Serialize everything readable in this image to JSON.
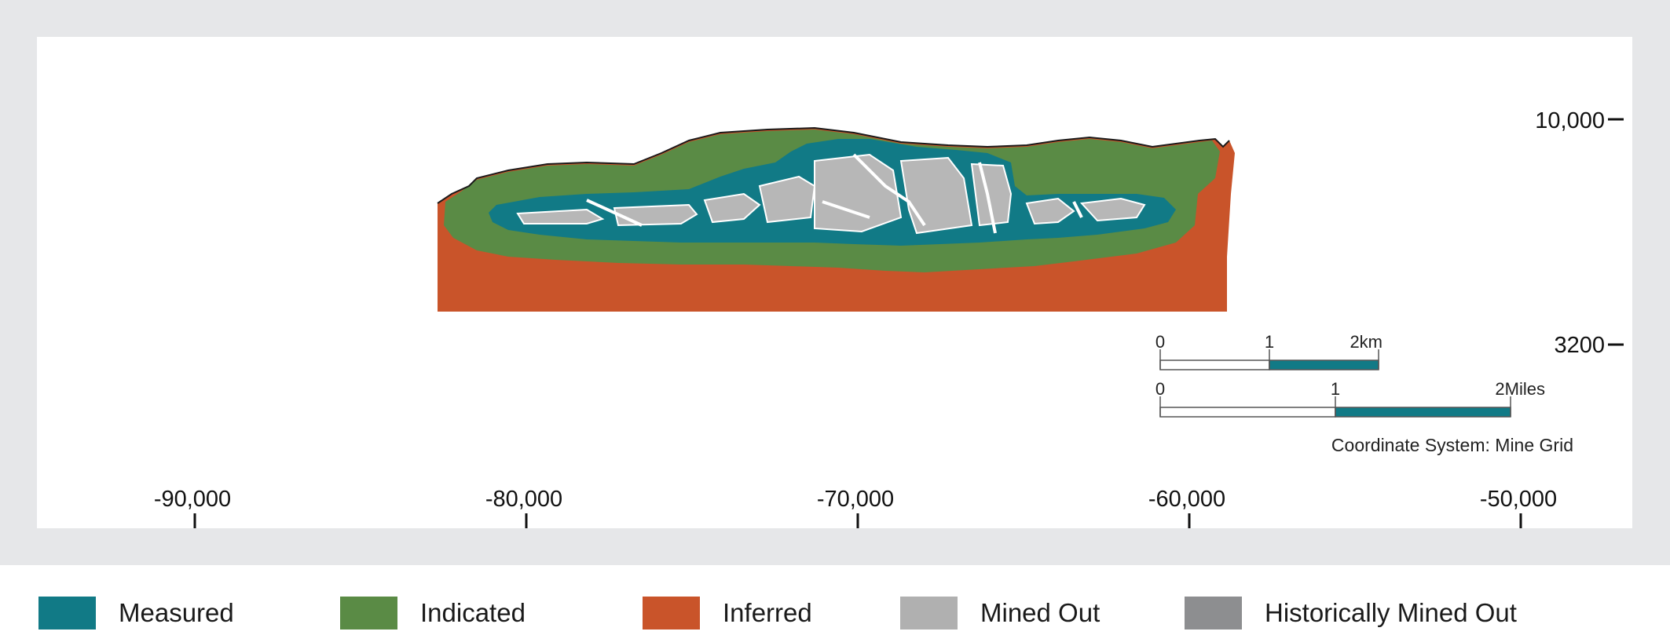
{
  "section": {
    "elevation_ticks": [
      {
        "label": "10,000",
        "value": 10000
      },
      {
        "label": "3200",
        "value": 3200
      }
    ],
    "easting_ticks": [
      {
        "label": "-90,000",
        "value": -90000
      },
      {
        "label": "-80,000",
        "value": -80000
      },
      {
        "label": "-70,000",
        "value": -70000
      },
      {
        "label": "-60,000",
        "value": -60000
      },
      {
        "label": "-50,000",
        "value": -50000
      }
    ],
    "scale_km": {
      "labels": [
        "0",
        "1",
        "2km"
      ]
    },
    "scale_miles": {
      "labels": [
        "0",
        "1",
        "2Miles"
      ]
    },
    "coordinate_system": "Coordinate System: Mine Grid"
  },
  "legend": [
    {
      "key": "measured",
      "label": "Measured",
      "color": "#117a86"
    },
    {
      "key": "indicated",
      "label": "Indicated",
      "color": "#5a8b45"
    },
    {
      "key": "inferred",
      "label": "Inferred",
      "color": "#c9542a"
    },
    {
      "key": "mined-out",
      "label": "Mined Out",
      "color": "#b0b0b0"
    },
    {
      "key": "historically-mined-out",
      "label": "Historically Mined Out",
      "color": "#8d8e90"
    }
  ]
}
